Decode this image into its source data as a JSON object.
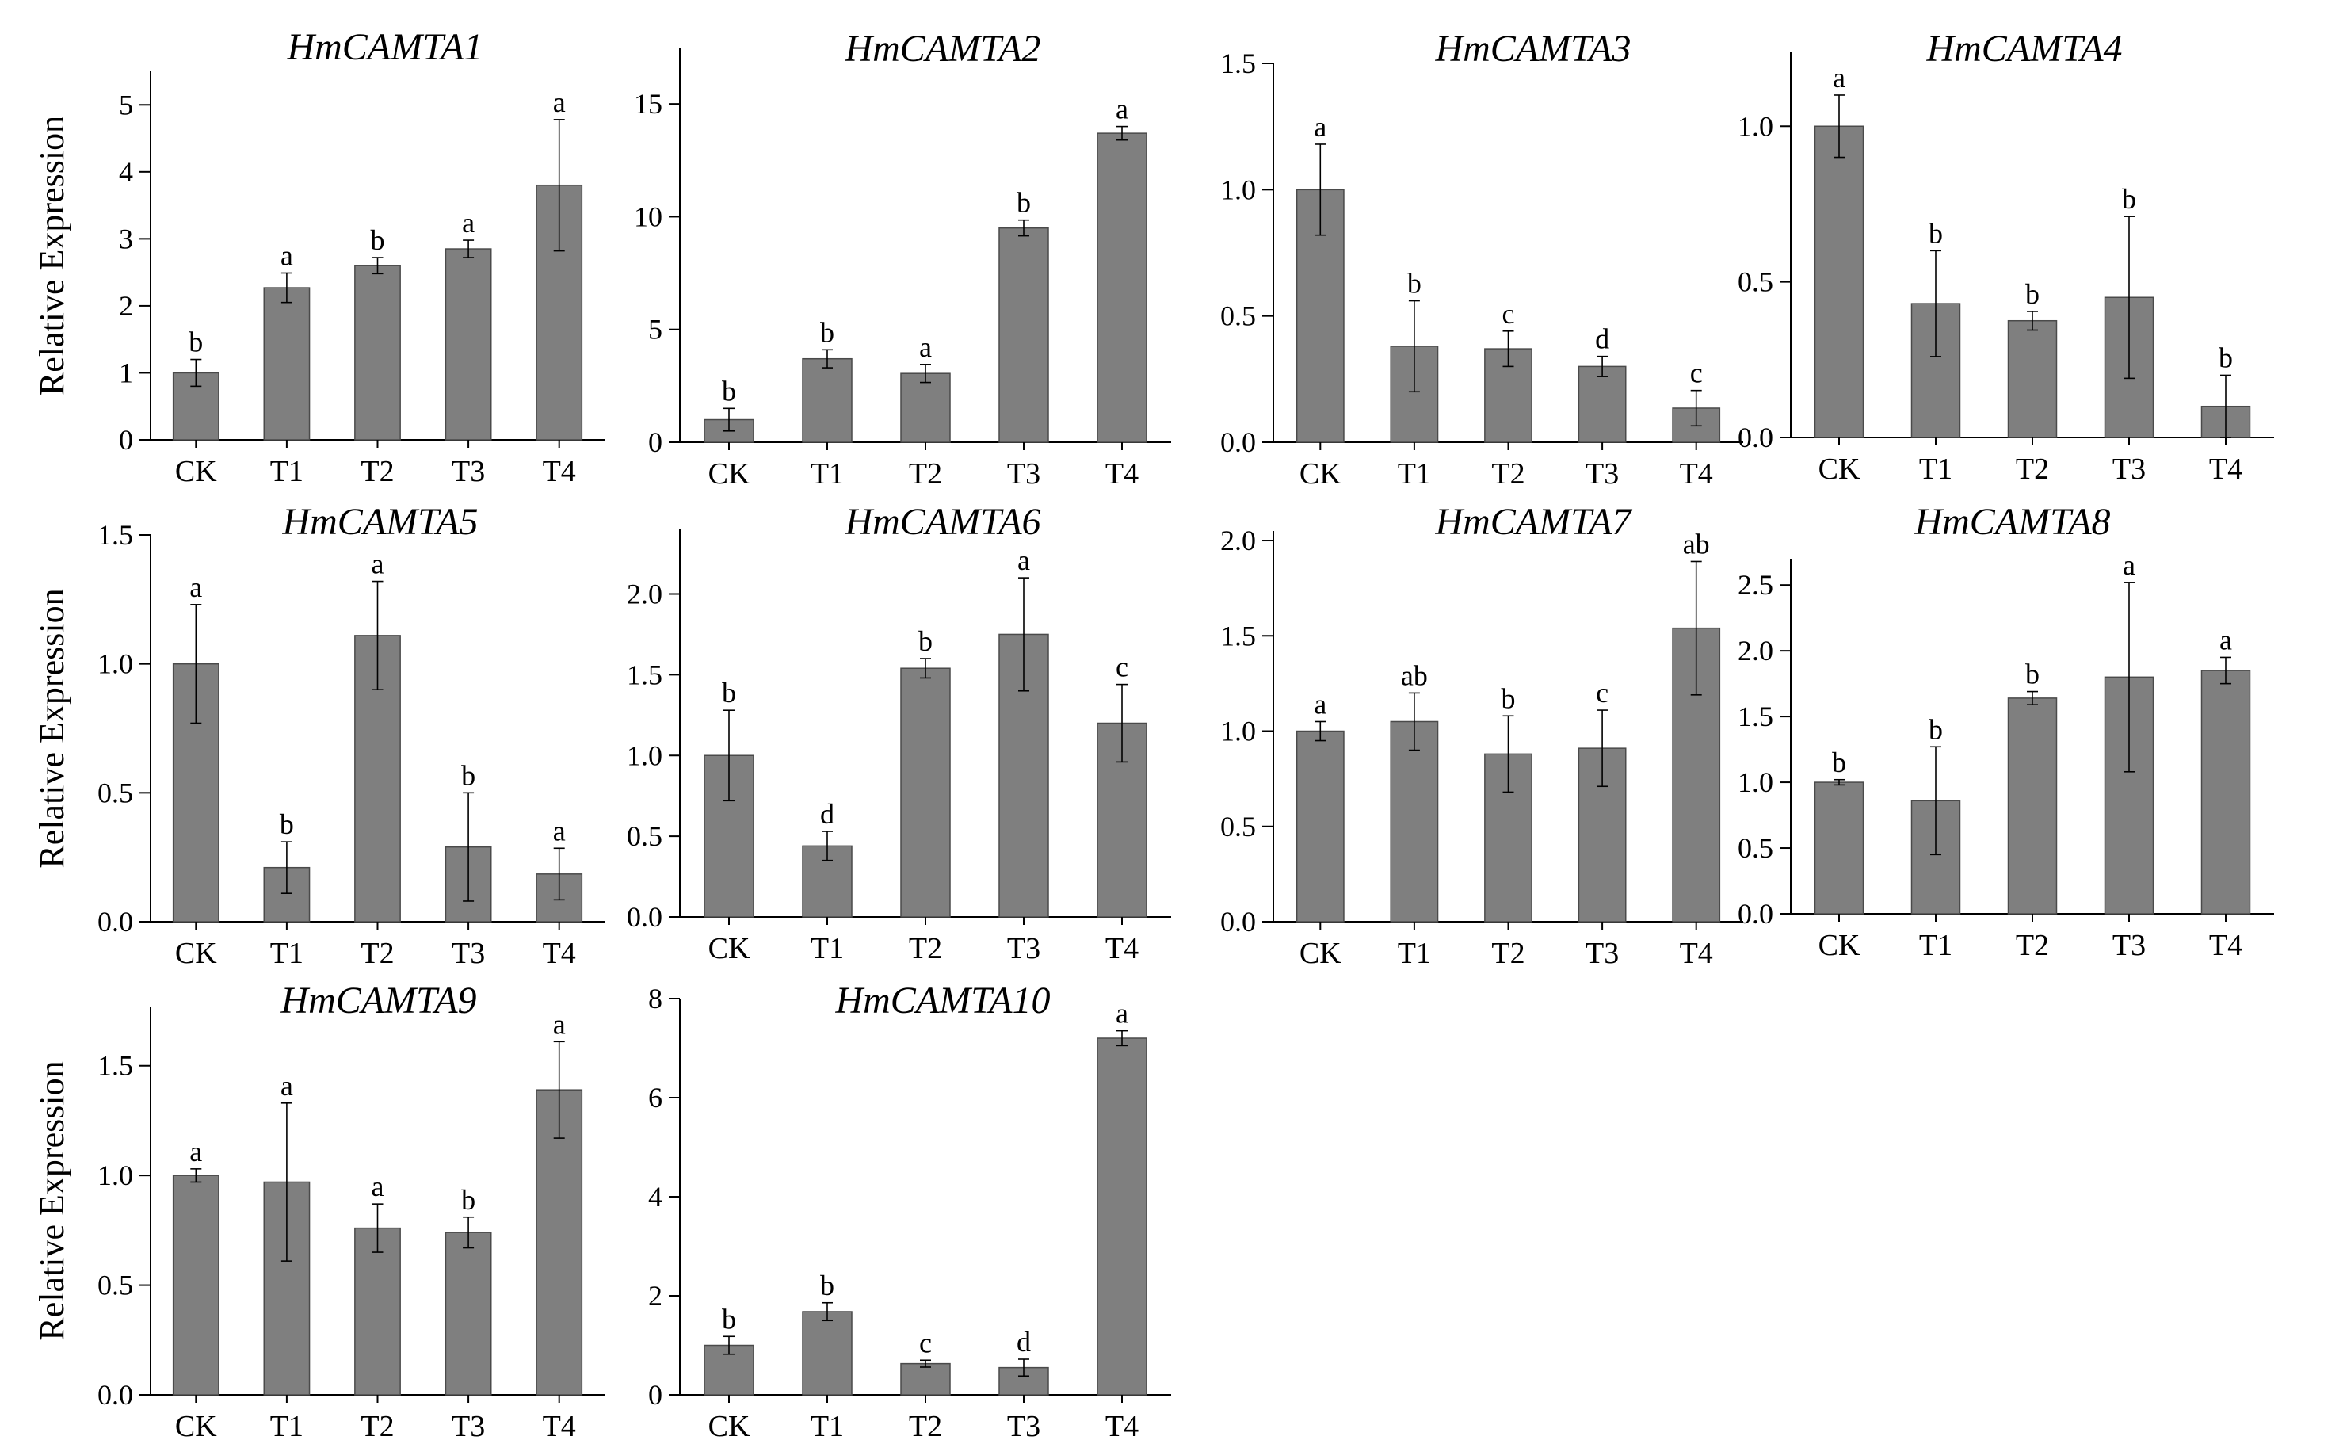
{
  "figure": {
    "ylabel": "Relative Expression",
    "bar_color": "#7f7f7f",
    "error_color": "#000000"
  },
  "chart_data": [
    {
      "type": "bar",
      "title": "HmCAMTA1",
      "ylabel": "Relative Expression",
      "categories": [
        "CK",
        "T1",
        "T2",
        "T3",
        "T4"
      ],
      "values": [
        1.0,
        2.27,
        2.6,
        2.85,
        3.8
      ],
      "errors": [
        0.2,
        0.22,
        0.12,
        0.13,
        0.98
      ],
      "significance": [
        "b",
        "a",
        "b",
        "a",
        "a"
      ],
      "ylim": [
        0,
        5.5
      ],
      "yticks": [
        0,
        1,
        2,
        3,
        4,
        5
      ],
      "ytick_labels": [
        "0",
        "1",
        "2",
        "3",
        "4",
        "5"
      ]
    },
    {
      "type": "bar",
      "title": "HmCAMTA2",
      "ylabel": "",
      "categories": [
        "CK",
        "T1",
        "T2",
        "T3",
        "T4"
      ],
      "values": [
        1.0,
        3.7,
        3.05,
        9.5,
        13.7
      ],
      "errors": [
        0.5,
        0.4,
        0.4,
        0.35,
        0.3
      ],
      "significance": [
        "b",
        "b",
        "a",
        "b",
        "a"
      ],
      "ylim": [
        0,
        17.5
      ],
      "yticks": [
        0,
        5,
        10,
        15
      ],
      "ytick_labels": [
        "0",
        "5",
        "10",
        "15"
      ]
    },
    {
      "type": "bar",
      "title": "HmCAMTA3",
      "ylabel": "",
      "categories": [
        "CK",
        "T1",
        "T2",
        "T3",
        "T4"
      ],
      "values": [
        1.0,
        0.38,
        0.37,
        0.3,
        0.135
      ],
      "errors": [
        0.18,
        0.18,
        0.07,
        0.04,
        0.07
      ],
      "significance": [
        "a",
        "b",
        "c",
        "d",
        "c"
      ],
      "ylim": [
        0,
        1.5
      ],
      "yticks": [
        0,
        0.5,
        1.0,
        1.5
      ],
      "ytick_labels": [
        "0.0",
        "0.5",
        "1.0",
        "1.5"
      ]
    },
    {
      "type": "bar",
      "title": "HmCAMTA4",
      "ylabel": "",
      "categories": [
        "CK",
        "T1",
        "T2",
        "T3",
        "T4"
      ],
      "values": [
        1.0,
        0.43,
        0.375,
        0.45,
        0.1
      ],
      "errors": [
        0.1,
        0.17,
        0.03,
        0.26,
        0.1
      ],
      "significance": [
        "a",
        "b",
        "b",
        "b",
        "b"
      ],
      "ylim": [
        0,
        1.24
      ],
      "yticks": [
        0,
        0.5,
        1.0
      ],
      "ytick_labels": [
        "0.0",
        "0.5",
        "1.0"
      ]
    },
    {
      "type": "bar",
      "title": "HmCAMTA5",
      "ylabel": "Relative Expression",
      "categories": [
        "CK",
        "T1",
        "T2",
        "T3",
        "T4"
      ],
      "values": [
        1.0,
        0.21,
        1.11,
        0.29,
        0.185
      ],
      "errors": [
        0.23,
        0.1,
        0.21,
        0.21,
        0.1
      ],
      "significance": [
        "a",
        "b",
        "a",
        "b",
        "a"
      ],
      "ylim": [
        0,
        1.5
      ],
      "yticks": [
        0,
        0.5,
        1.0,
        1.5
      ],
      "ytick_labels": [
        "0.0",
        "0.5",
        "1.0",
        "1.5"
      ]
    },
    {
      "type": "bar",
      "title": "HmCAMTA6",
      "ylabel": "",
      "categories": [
        "CK",
        "T1",
        "T2",
        "T3",
        "T4"
      ],
      "values": [
        1.0,
        0.44,
        1.54,
        1.75,
        1.2
      ],
      "errors": [
        0.28,
        0.09,
        0.06,
        0.35,
        0.24
      ],
      "significance": [
        "b",
        "d",
        "b",
        "a",
        "c"
      ],
      "ylim": [
        0,
        2.4
      ],
      "yticks": [
        0,
        0.5,
        1.0,
        1.5,
        2.0
      ],
      "ytick_labels": [
        "0.0",
        "0.5",
        "1.0",
        "1.5",
        "2.0"
      ]
    },
    {
      "type": "bar",
      "title": "HmCAMTA7",
      "ylabel": "",
      "categories": [
        "CK",
        "T1",
        "T2",
        "T3",
        "T4"
      ],
      "values": [
        1.0,
        1.05,
        0.88,
        0.91,
        1.54
      ],
      "errors": [
        0.05,
        0.15,
        0.2,
        0.2,
        0.35
      ],
      "significance": [
        "a",
        "ab",
        "b",
        "c",
        "ab"
      ],
      "ylim": [
        0,
        2.05
      ],
      "yticks": [
        0,
        0.5,
        1.0,
        1.5,
        2.0
      ],
      "ytick_labels": [
        "0.0",
        "0.5",
        "1.0",
        "1.5",
        "2.0"
      ]
    },
    {
      "type": "bar",
      "title": "HmCAMTA8",
      "ylabel": "",
      "categories": [
        "CK",
        "T1",
        "T2",
        "T3",
        "T4"
      ],
      "values": [
        1.0,
        0.86,
        1.64,
        1.8,
        1.85
      ],
      "errors": [
        0.02,
        0.41,
        0.05,
        0.72,
        0.1
      ],
      "significance": [
        "b",
        "b",
        "b",
        "a",
        "a"
      ],
      "ylim": [
        0,
        2.7
      ],
      "yticks": [
        0,
        0.5,
        1.0,
        1.5,
        2.0,
        2.5
      ],
      "ytick_labels": [
        "0.0",
        "0.5",
        "1.0",
        "1.5",
        "2.0",
        "2.5"
      ]
    },
    {
      "type": "bar",
      "title": "HmCAMTA9",
      "ylabel": "Relative Expression",
      "categories": [
        "CK",
        "T1",
        "T2",
        "T3",
        "T4"
      ],
      "values": [
        1.0,
        0.97,
        0.76,
        0.74,
        1.39
      ],
      "errors": [
        0.03,
        0.36,
        0.11,
        0.07,
        0.22
      ],
      "significance": [
        "a",
        "a",
        "a",
        "b",
        "a"
      ],
      "ylim": [
        0,
        1.77
      ],
      "yticks": [
        0,
        0.5,
        1.0,
        1.5
      ],
      "ytick_labels": [
        "0.0",
        "0.5",
        "1.0",
        "1.5"
      ]
    },
    {
      "type": "bar",
      "title": "HmCAMTA10",
      "ylabel": "",
      "categories": [
        "CK",
        "T1",
        "T2",
        "T3",
        "T4"
      ],
      "values": [
        1.0,
        1.68,
        0.63,
        0.55,
        7.2
      ],
      "errors": [
        0.18,
        0.18,
        0.07,
        0.17,
        0.15
      ],
      "significance": [
        "b",
        "b",
        "c",
        "d",
        "a"
      ],
      "ylim": [
        0,
        8
      ],
      "yticks": [
        0,
        2,
        4,
        6,
        8
      ],
      "ytick_labels": [
        "0",
        "2",
        "4",
        "6",
        "8"
      ]
    }
  ]
}
